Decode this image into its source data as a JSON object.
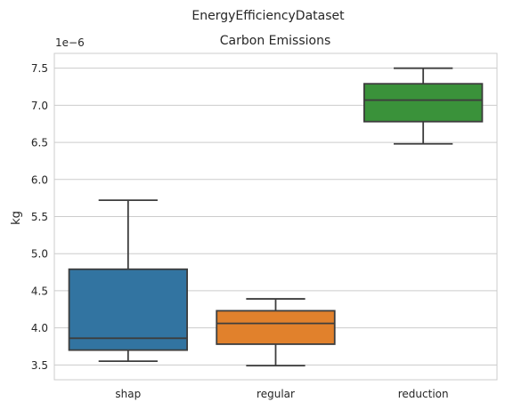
{
  "chart_data": {
    "type": "box",
    "suptitle": "EnergyEfficiencyDataset",
    "title": "Carbon Emissions",
    "xlabel": "",
    "ylabel": "kg",
    "y_offset_label": "1e−6",
    "ylim": [
      3.3,
      7.7
    ],
    "yticks": [
      3.5,
      4.0,
      4.5,
      5.0,
      5.5,
      6.0,
      6.5,
      7.0,
      7.5
    ],
    "ytick_labels": [
      "3.5",
      "4.0",
      "4.5",
      "5.0",
      "5.5",
      "6.0",
      "6.5",
      "7.0",
      "7.5"
    ],
    "grid": "y",
    "categories": [
      "shap",
      "regular",
      "reduction"
    ],
    "boxes": [
      {
        "category": "shap",
        "whisker_low": 3.55,
        "q1": 3.7,
        "median": 3.86,
        "q3": 4.79,
        "whisker_high": 5.72,
        "color": "#3274a1"
      },
      {
        "category": "regular",
        "whisker_low": 3.49,
        "q1": 3.78,
        "median": 4.06,
        "q3": 4.23,
        "whisker_high": 4.39,
        "color": "#e1812c"
      },
      {
        "category": "reduction",
        "whisker_low": 6.48,
        "q1": 6.78,
        "median": 7.07,
        "q3": 7.29,
        "whisker_high": 7.5,
        "color": "#3a923a"
      }
    ]
  }
}
